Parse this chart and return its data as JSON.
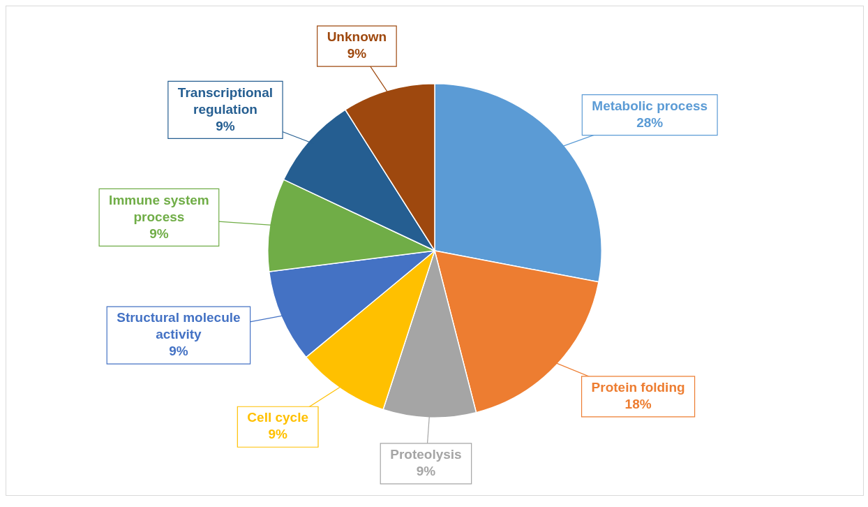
{
  "chart_data": {
    "type": "pie",
    "categories": [
      "Metabolic process",
      "Protein folding",
      "Proteolysis",
      "Cell cycle",
      "Structural molecule activity",
      "Immune system process",
      "Transcriptional regulation",
      "Unknown"
    ],
    "values": [
      28,
      18,
      9,
      9,
      9,
      9,
      9,
      9
    ],
    "colors": [
      "#5b9bd5",
      "#ed7d31",
      "#a5a5a5",
      "#ffc000",
      "#4472c4",
      "#70ad47",
      "#255e91",
      "#9e480e"
    ],
    "value_labels": [
      "28%",
      "18%",
      "9%",
      "9%",
      "9%",
      "9%",
      "9%",
      "9%"
    ],
    "legend": false
  }
}
